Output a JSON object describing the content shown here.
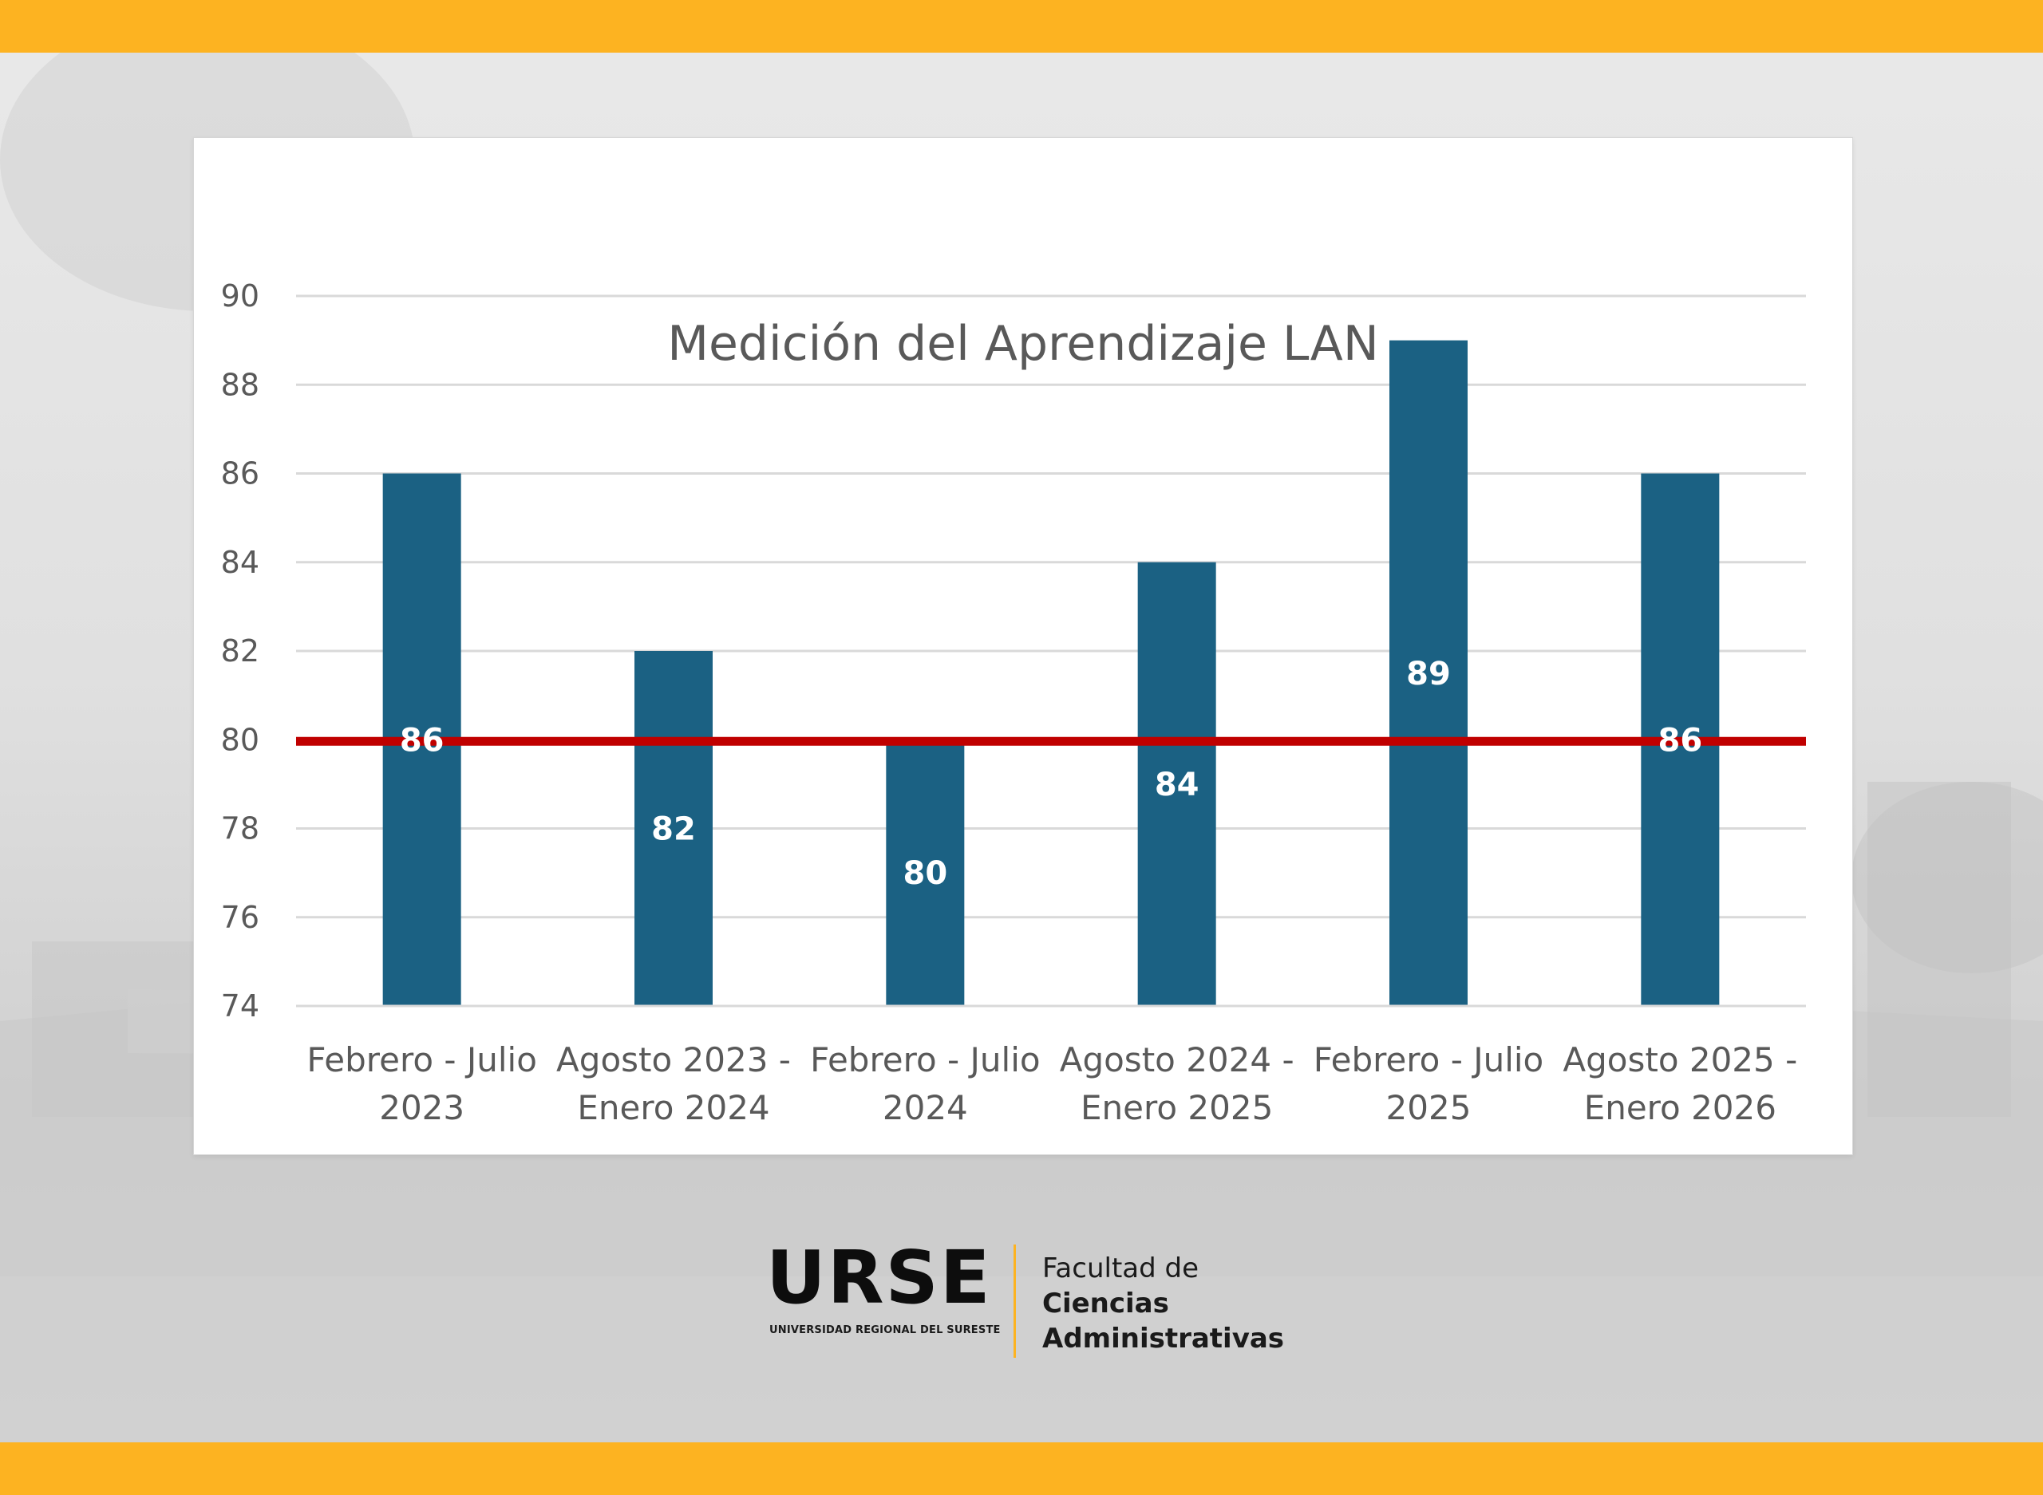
{
  "theme": {
    "band_color": "#FDB321",
    "bar_color": "#1B6183",
    "threshold_color": "#C00000",
    "grid_color": "#D9D9D9"
  },
  "chart_data": {
    "type": "bar",
    "title": "Medición del Aprendizaje LAN",
    "categories": [
      [
        "Febrero - Julio",
        "2023"
      ],
      [
        "Agosto 2023 -",
        "Enero 2024"
      ],
      [
        "Febrero - Julio",
        "2024"
      ],
      [
        "Agosto 2024 -",
        "Enero 2025"
      ],
      [
        "Febrero - Julio",
        "2025"
      ],
      [
        "Agosto 2025 -",
        "Enero 2026"
      ]
    ],
    "values": [
      86,
      82,
      80,
      84,
      89,
      86
    ],
    "data_labels": [
      "86",
      "82",
      "80",
      "84",
      "89",
      "86"
    ],
    "ylim": [
      74,
      90
    ],
    "yticks": [
      "74",
      "76",
      "78",
      "80",
      "82",
      "84",
      "86",
      "88",
      "90"
    ],
    "threshold": 80,
    "grid": true,
    "xlabel": "",
    "ylabel": ""
  },
  "logo": {
    "brand": "URSE",
    "subtitle": "UNIVERSIDAD REGIONAL DEL SURESTE",
    "faculty_line1": "Facultad de",
    "faculty_line2": "Ciencias",
    "faculty_line3": "Administrativas"
  }
}
